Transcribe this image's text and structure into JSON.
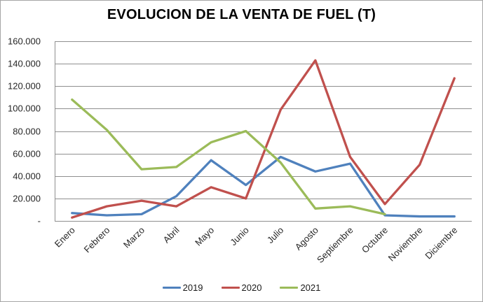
{
  "chart_data": {
    "type": "line",
    "title": "EVOLUCION DE LA VENTA DE FUEL (T)",
    "categories": [
      "Enero",
      "Febrero",
      "Marzo",
      "Abril",
      "Mayo",
      "Junio",
      "Julio",
      "Agosto",
      "Septiembre",
      "Octubre",
      "Noviembre",
      "Diciembre"
    ],
    "series": [
      {
        "name": "2019",
        "color": "#4F81BD",
        "values": [
          7000,
          5000,
          6000,
          22000,
          54000,
          32000,
          57000,
          44000,
          51000,
          5000,
          4000,
          4000
        ]
      },
      {
        "name": "2020",
        "color": "#C0504D",
        "values": [
          3000,
          13000,
          18000,
          13000,
          30000,
          20000,
          99000,
          143000,
          57000,
          15000,
          50000,
          127000
        ]
      },
      {
        "name": "2021",
        "color": "#9BBB59",
        "values": [
          108000,
          81000,
          46000,
          48000,
          70000,
          80000,
          52000,
          11000,
          13000,
          6000,
          null,
          null
        ]
      }
    ],
    "ylim": [
      0,
      160000
    ],
    "y_tick_step": 20000,
    "y_ticks": [
      {
        "value": 160000,
        "label": "160.000"
      },
      {
        "value": 140000,
        "label": "140.000"
      },
      {
        "value": 120000,
        "label": "120.000"
      },
      {
        "value": 100000,
        "label": "100.000"
      },
      {
        "value": 80000,
        "label": "80.000"
      },
      {
        "value": 60000,
        "label": "60.000"
      },
      {
        "value": 40000,
        "label": "40.000"
      },
      {
        "value": 20000,
        "label": "20.000"
      },
      {
        "value": 0,
        "label": "-"
      }
    ],
    "xlabel": "",
    "ylabel": "",
    "grid": "horizontal",
    "legend_position": "bottom"
  },
  "colors": {
    "grid": "#8f8f8f",
    "axis": "#8f8f8f",
    "tick_text": "#262626",
    "title_text": "#000000",
    "frame_border": "#a6a6a6",
    "background": "#ffffff"
  }
}
